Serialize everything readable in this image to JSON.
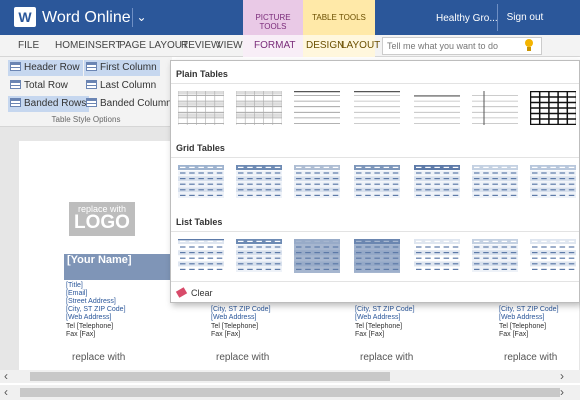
{
  "app": {
    "name": "Word Online",
    "logo_letter": "W",
    "user": "Healthy Gro...",
    "signout": "Sign out"
  },
  "contextual": {
    "picture_tools": "PICTURE TOOLS",
    "table_tools": "TABLE TOOLS"
  },
  "tabs": [
    "FILE",
    "HOME",
    "INSERT",
    "PAGE LAYOUT",
    "REVIEW",
    "VIEW",
    "FORMAT",
    "DESIGN",
    "LAYOUT"
  ],
  "tell_me": {
    "placeholder": "Tell me what you want to do"
  },
  "style_options": {
    "items": [
      {
        "label": "Header Row",
        "checked": true
      },
      {
        "label": "First Column",
        "checked": true
      },
      {
        "label": "Total Row",
        "checked": false
      },
      {
        "label": "Last Column",
        "checked": false
      },
      {
        "label": "Banded Rows",
        "checked": true
      },
      {
        "label": "Banded Columns",
        "checked": false
      }
    ],
    "group_label": "Table Style Options"
  },
  "gallery": {
    "sections": [
      "Plain Tables",
      "Grid Tables",
      "List Tables"
    ],
    "clear": "Clear"
  },
  "document": {
    "logo_line1": "replace with",
    "logo_line2": "LOGO",
    "name": "[Your Name]",
    "card_lines": [
      "[Title]",
      "[Email]",
      "[Street Address]",
      "[City, ST  ZIP Code]",
      "[Web Address]",
      "Tel  [Telephone]",
      "Fax  [Fax]"
    ],
    "partial_lines": [
      "[City, ST  ZIP Code]",
      "[Web Address]",
      "Tel  [Telephone]",
      "Fax  [Fax]"
    ],
    "bottom_logo": "replace with"
  },
  "colors": {
    "titlebar": "#2b579a",
    "picture_tools": "#e9c9e6",
    "table_tools": "#ffe9a8",
    "accent": "#7f95b7"
  }
}
